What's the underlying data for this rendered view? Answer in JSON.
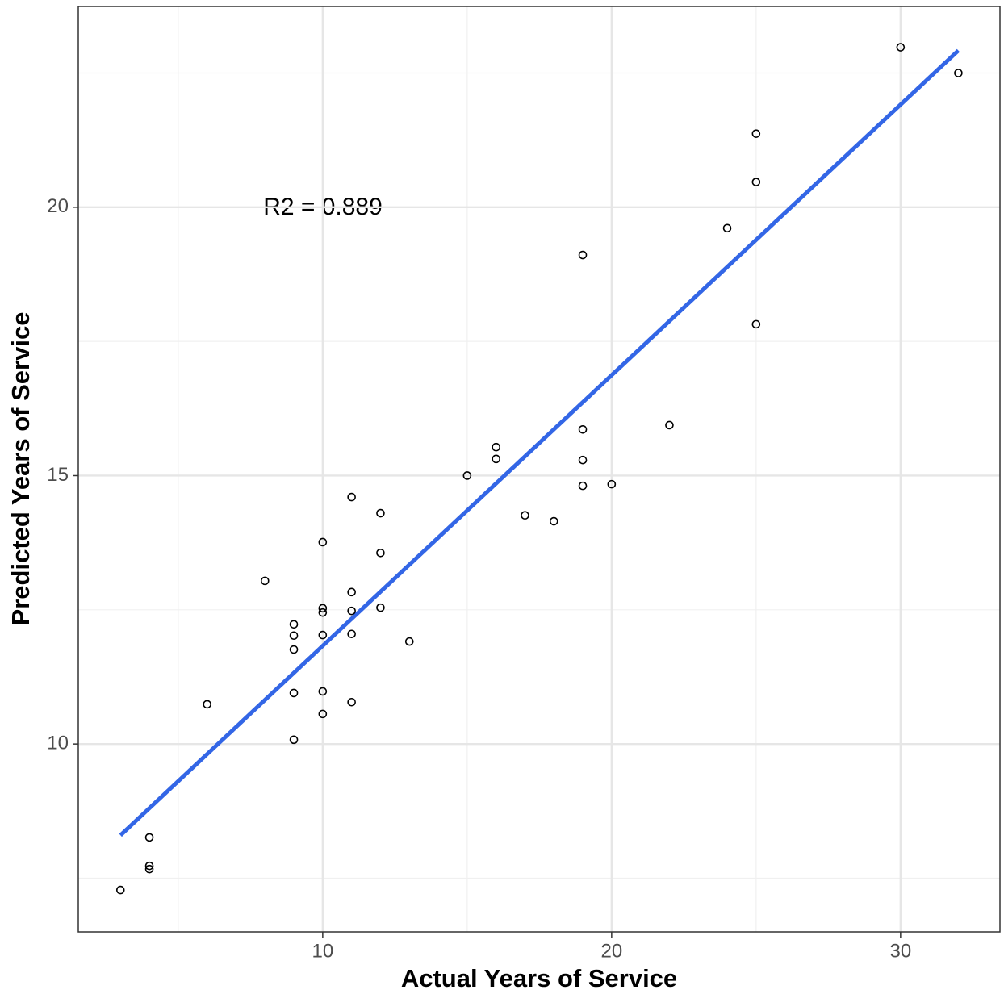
{
  "chart_data": {
    "type": "scatter",
    "xlabel": "Actual Years of Service",
    "ylabel": "Predicted Years of Service",
    "annotation": "R2 = 0.889",
    "xlim": [
      1.54,
      33.44
    ],
    "ylim": [
      6.5,
      23.74
    ],
    "xticks": [
      10,
      20,
      30
    ],
    "yticks": [
      10,
      15,
      20
    ],
    "xminor": [
      5,
      15,
      25
    ],
    "yminor": [
      7.5,
      12.5,
      17.5,
      22.5
    ],
    "grid": true,
    "point_color": "#000000",
    "x": [
      3,
      4,
      4,
      4,
      6,
      8,
      9,
      9,
      9,
      9,
      9,
      10,
      10,
      10,
      10,
      10,
      10,
      11,
      11,
      11,
      11,
      11,
      12,
      12,
      12,
      13,
      15,
      16,
      16,
      17,
      18,
      19,
      19,
      19,
      19,
      20,
      22,
      24,
      25,
      25,
      25,
      30,
      32
    ],
    "y": [
      7.28,
      8.26,
      7.73,
      7.67,
      10.74,
      13.04,
      12.23,
      12.02,
      11.76,
      10.95,
      10.08,
      13.76,
      12.53,
      12.45,
      12.03,
      10.98,
      10.56,
      14.6,
      12.83,
      12.48,
      12.05,
      10.78,
      14.3,
      13.56,
      12.54,
      11.91,
      15.0,
      15.53,
      15.31,
      14.26,
      14.15,
      19.11,
      15.86,
      15.29,
      14.81,
      14.84,
      15.94,
      19.61,
      21.37,
      20.47,
      17.82,
      22.98,
      22.5
    ],
    "fit": {
      "x": [
        3,
        32
      ],
      "y": [
        8.3,
        22.92
      ],
      "color": "#3366e6"
    }
  }
}
